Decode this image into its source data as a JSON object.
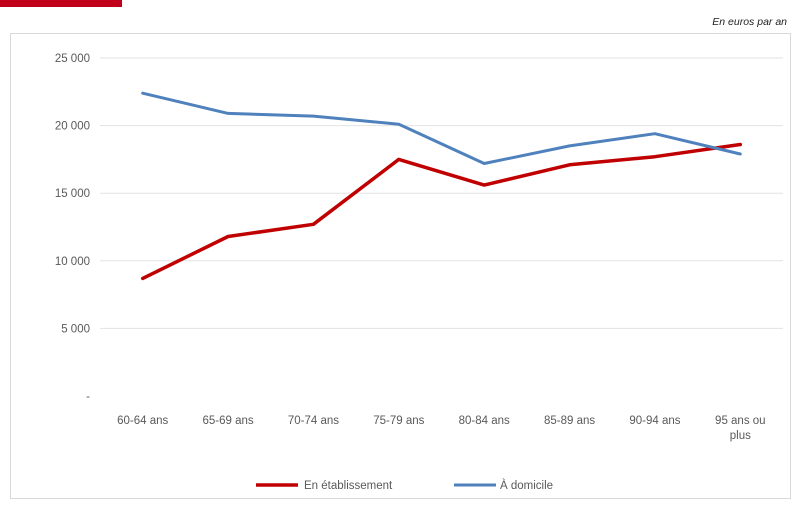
{
  "units_note": "En euros par an",
  "colors": {
    "series_1": "#c00000",
    "series_2": "#4f81bd",
    "grid": "#e3e3e3",
    "accent": "#c0001a"
  },
  "chart_data": {
    "type": "line",
    "categories": [
      "60-64 ans",
      "65-69 ans",
      "70-74 ans",
      "75-79 ans",
      "80-84 ans",
      "85-89 ans",
      "90-94 ans",
      "95 ans ou plus"
    ],
    "category_lines": [
      [
        "60-64 ans"
      ],
      [
        "65-69 ans"
      ],
      [
        "70-74 ans"
      ],
      [
        "75-79 ans"
      ],
      [
        "80-84 ans"
      ],
      [
        "85-89 ans"
      ],
      [
        "90-94 ans"
      ],
      [
        "95 ans ou",
        "plus"
      ]
    ],
    "series": [
      {
        "name": "En établissement",
        "color": "#c00000",
        "values": [
          8700,
          11800,
          12700,
          17500,
          15600,
          17100,
          17700,
          18600
        ]
      },
      {
        "name": "À domicile",
        "color": "#4f81bd",
        "values": [
          22400,
          20900,
          20700,
          20100,
          17200,
          18500,
          19400,
          17900
        ]
      }
    ],
    "yticks": [
      0,
      5000,
      10000,
      15000,
      20000,
      25000
    ],
    "ytick_labels": [
      "-",
      "5 000",
      "10 000",
      "15 000",
      "20 000",
      "25 000"
    ],
    "ylim": [
      0,
      25000
    ],
    "grid": true,
    "legend_position": "bottom"
  }
}
